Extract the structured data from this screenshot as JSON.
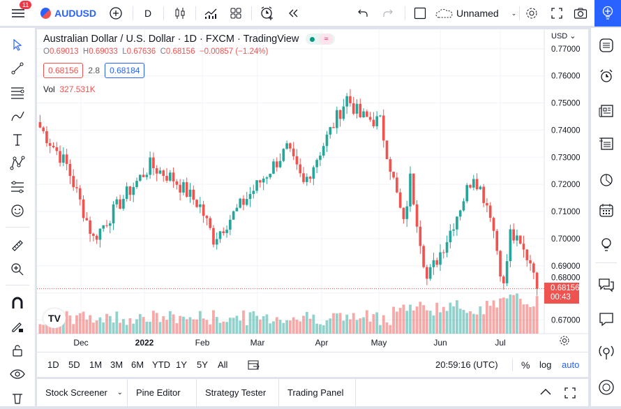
{
  "topbar": {
    "notifications": "11",
    "symbol": "AUDUSD",
    "interval": "D",
    "layout_name": "Unnamed"
  },
  "legend": {
    "title": "Australian Dollar / U.S. Dollar · 1D · FXCM · TradingView",
    "o_label": "O",
    "o": "0.69013",
    "h_label": "H",
    "h": "0.69033",
    "l_label": "L",
    "l": "0.67636",
    "c_label": "C",
    "c": "0.68156",
    "change": "−0.00857 (−1.24%)",
    "bid": "0.68156",
    "spread": "2.8",
    "ask": "0.68184",
    "vol_label": "Vol",
    "vol": "327.531K"
  },
  "price_axis": {
    "currency": "USD",
    "ticks": [
      "0.77000",
      "0.76000",
      "0.75000",
      "0.74000",
      "0.73000",
      "0.72000",
      "0.71000",
      "0.70000",
      "0.69000",
      "0.68000",
      "0.67000"
    ],
    "last_price": "0.68156",
    "countdown": "00:43"
  },
  "time_axis": {
    "ticks": [
      "Dec",
      "2022",
      "Feb",
      "Mar",
      "Apr",
      "May",
      "Jun",
      "Jul"
    ]
  },
  "colors": {
    "up": "#26a69a",
    "down": "#ef5350",
    "accent": "#2962ff"
  },
  "chart": {
    "ylim": [
      0.665,
      0.772
    ],
    "candles": 150,
    "close_waypoints": [
      [
        0,
        0.741
      ],
      [
        8,
        0.727
      ],
      [
        16,
        0.7
      ],
      [
        25,
        0.715
      ],
      [
        33,
        0.727
      ],
      [
        40,
        0.722
      ],
      [
        48,
        0.712
      ],
      [
        52,
        0.7
      ],
      [
        62,
        0.715
      ],
      [
        74,
        0.733
      ],
      [
        79,
        0.72
      ],
      [
        92,
        0.752
      ],
      [
        96,
        0.745
      ],
      [
        102,
        0.743
      ],
      [
        109,
        0.705
      ],
      [
        111,
        0.722
      ],
      [
        116,
        0.685
      ],
      [
        122,
        0.7
      ],
      [
        130,
        0.724
      ],
      [
        135,
        0.71
      ],
      [
        139,
        0.682
      ],
      [
        141,
        0.702
      ],
      [
        148,
        0.69
      ],
      [
        149,
        0.68156
      ]
    ]
  },
  "timeframes": [
    "1D",
    "5D",
    "1M",
    "3M",
    "6M",
    "YTD",
    "1Y",
    "5Y",
    "All"
  ],
  "status": {
    "clock": "20:59:16 (UTC)",
    "percent": "%",
    "log": "log",
    "auto": "auto"
  },
  "bottom_tabs": [
    "Stock Screener",
    "Pine Editor",
    "Strategy Tester",
    "Trading Panel"
  ]
}
